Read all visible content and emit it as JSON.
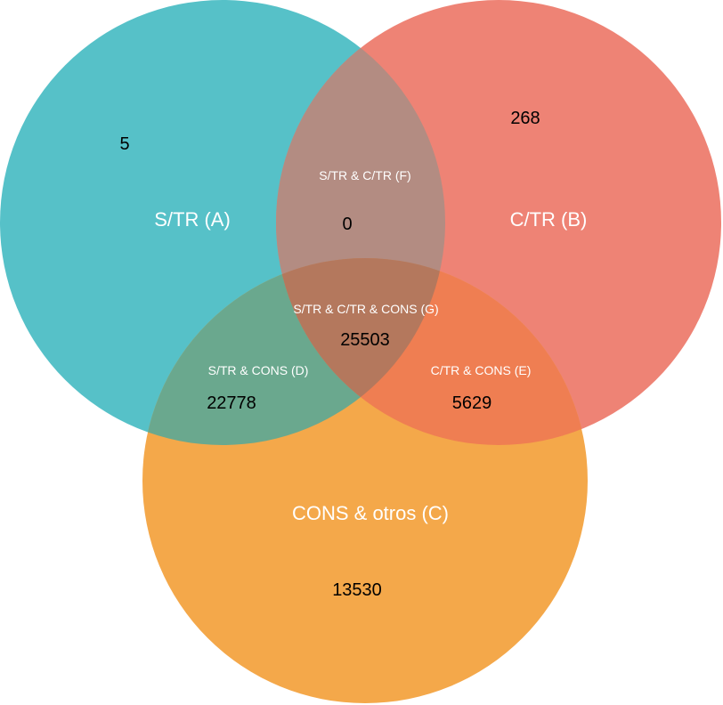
{
  "colors": {
    "set_a": "#56c1c8",
    "set_b": "#ee8375",
    "set_c": "#f4a84a",
    "overlap_ab": "#b38c82",
    "overlap_ac": "#6aa88e",
    "overlap_bc": "#ef7e52",
    "overlap_abc": "#b4785d"
  },
  "sets": {
    "a": {
      "label": "S/TR (A)",
      "count": "5"
    },
    "b": {
      "label": "C/TR (B)",
      "count": "268"
    },
    "c": {
      "label": "CONS & otros (C)",
      "count": "13530"
    }
  },
  "regions": {
    "ab": {
      "label": "S/TR & C/TR (F)",
      "count": "0"
    },
    "ac": {
      "label": "S/TR & CONS (D)",
      "count": "22778"
    },
    "bc": {
      "label": "C/TR & CONS (E)",
      "count": "5629"
    },
    "abc": {
      "label": "S/TR & C/TR & CONS (G)",
      "count": "25503"
    }
  }
}
